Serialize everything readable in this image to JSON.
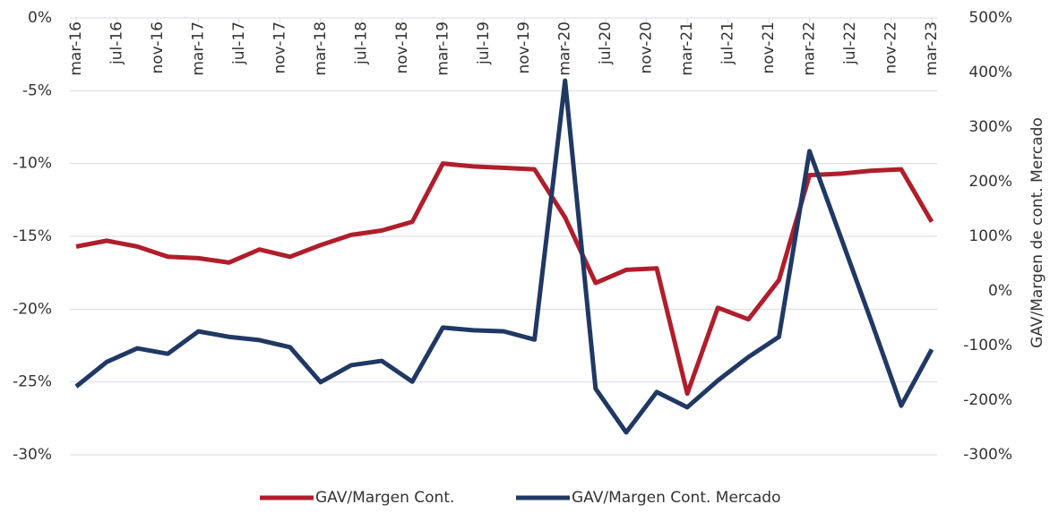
{
  "chart_data": {
    "type": "line",
    "x": [
      "2016-03",
      "2016-06",
      "2016-09",
      "2016-12",
      "2017-03",
      "2017-06",
      "2017-09",
      "2017-12",
      "2018-03",
      "2018-06",
      "2018-09",
      "2018-12",
      "2019-03",
      "2019-06",
      "2019-09",
      "2019-12",
      "2020-03",
      "2020-06",
      "2020-09",
      "2020-12",
      "2021-03",
      "2021-06",
      "2021-09",
      "2021-12",
      "2022-03",
      "2022-06",
      "2022-09",
      "2022-12",
      "2023-03"
    ],
    "xticks": [
      {
        "value": "2016-03",
        "label": "mar-16"
      },
      {
        "value": "2016-07",
        "label": "jul-16"
      },
      {
        "value": "2016-11",
        "label": "nov-16"
      },
      {
        "value": "2017-03",
        "label": "mar-17"
      },
      {
        "value": "2017-07",
        "label": "jul-17"
      },
      {
        "value": "2017-11",
        "label": "nov-17"
      },
      {
        "value": "2018-03",
        "label": "mar-18"
      },
      {
        "value": "2018-07",
        "label": "jul-18"
      },
      {
        "value": "2018-11",
        "label": "nov-18"
      },
      {
        "value": "2019-03",
        "label": "mar-19"
      },
      {
        "value": "2019-07",
        "label": "jul-19"
      },
      {
        "value": "2019-11",
        "label": "nov-19"
      },
      {
        "value": "2020-03",
        "label": "mar-20"
      },
      {
        "value": "2020-07",
        "label": "jul-20"
      },
      {
        "value": "2020-11",
        "label": "nov-20"
      },
      {
        "value": "2021-03",
        "label": "mar-21"
      },
      {
        "value": "2021-07",
        "label": "jul-21"
      },
      {
        "value": "2021-11",
        "label": "nov-21"
      },
      {
        "value": "2022-03",
        "label": "mar-22"
      },
      {
        "value": "2022-07",
        "label": "jul-22"
      },
      {
        "value": "2022-11",
        "label": "nov-22"
      },
      {
        "value": "2023-03",
        "label": "mar-23"
      }
    ],
    "ylim": [
      -30,
      0
    ],
    "yticks": [
      {
        "value": 0,
        "label": "0%"
      },
      {
        "value": -5,
        "label": "-5%"
      },
      {
        "value": -10,
        "label": "-10%"
      },
      {
        "value": -15,
        "label": "-15%"
      },
      {
        "value": -20,
        "label": "-20%"
      },
      {
        "value": -25,
        "label": "-25%"
      },
      {
        "value": -30,
        "label": "-30%"
      }
    ],
    "y2lim": [
      -300,
      500
    ],
    "y2ticks": [
      {
        "value": 500,
        "label": "500%"
      },
      {
        "value": 400,
        "label": "400%"
      },
      {
        "value": 300,
        "label": "300%"
      },
      {
        "value": 200,
        "label": "200%"
      },
      {
        "value": 100,
        "label": "100%"
      },
      {
        "value": 0,
        "label": "0%"
      },
      {
        "value": -100,
        "label": "-100%"
      },
      {
        "value": -200,
        "label": "-200%"
      },
      {
        "value": -300,
        "label": "-300%"
      }
    ],
    "y2label": "GAV/Margen de cont. Mercado",
    "grid": true,
    "legend": "bottom",
    "series": [
      {
        "name": "GAV/Margen Cont.",
        "color": "#b01e2b",
        "values": [
          -15.7,
          -15.3,
          -15.7,
          -16.4,
          -16.5,
          -16.8,
          -15.9,
          -16.4,
          -15.6,
          -14.9,
          -14.6,
          -14.0,
          -10.0,
          -10.2,
          -10.3,
          -10.4,
          -13.7,
          -18.2,
          -17.3,
          -17.2,
          -25.8,
          -19.9,
          -20.7,
          -18.0,
          -10.8,
          -10.7,
          -10.5,
          -10.4,
          -14.0
        ]
      },
      {
        "name": "GAV/Margen Cont. Mercado",
        "color": "#203864",
        "axis": "y2",
        "values": [
          -175,
          -130,
          -105,
          -115,
          -74,
          -84,
          -90,
          -103,
          -167,
          -136,
          -128,
          -166,
          -67,
          -72,
          -74,
          -89,
          385,
          -179,
          -259,
          -185,
          -213,
          -164,
          -121,
          -84,
          256,
          102,
          -52,
          -210,
          -107
        ]
      }
    ]
  }
}
